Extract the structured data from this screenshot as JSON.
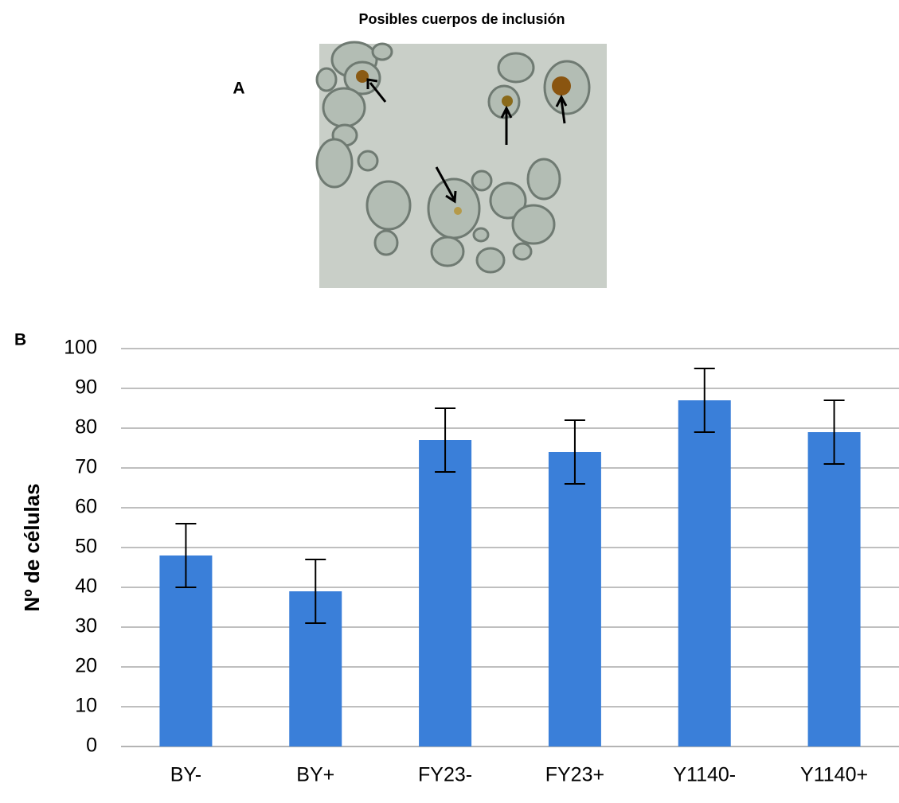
{
  "title": "Posibles cuerpos de inclusión",
  "panel_a": {
    "label": "A"
  },
  "chart_data": {
    "type": "bar",
    "panel_label": "B",
    "ylabel": "Nº de células",
    "categories": [
      "BY-",
      "BY+",
      "FY23-",
      "FY23+",
      "Y1140-",
      "Y1140+"
    ],
    "values": [
      48,
      39,
      77,
      74,
      87,
      79
    ],
    "errors": [
      8,
      8,
      8,
      8,
      8,
      8
    ],
    "color": "#3a7fd9",
    "ylim": [
      0,
      100
    ],
    "yticks": [
      0,
      10,
      20,
      30,
      40,
      50,
      60,
      70,
      80,
      90,
      100
    ],
    "grid": true
  }
}
